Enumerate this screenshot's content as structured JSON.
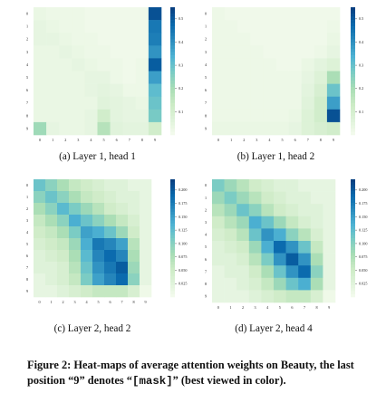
{
  "figure": {
    "caption": {
      "prefix": "Figure 2: Heat-maps of average attention weights on Beauty, the last position “9” denotes “",
      "code": "[mask]",
      "suffix": "” (best viewed in color)."
    },
    "colorscale": [
      "#f7fcf0",
      "#e0f3db",
      "#ccebc5",
      "#a8ddb5",
      "#7bccc4",
      "#4eb3d3",
      "#2b8cbe",
      "#0868ac",
      "#084081"
    ]
  },
  "chart_data": [
    {
      "type": "heatmap",
      "title": "(a) Layer 1, head 1",
      "x_categories": [
        "0",
        "1",
        "2",
        "3",
        "4",
        "5",
        "6",
        "7",
        "8",
        "9"
      ],
      "y_categories": [
        "0",
        "1",
        "2",
        "3",
        "4",
        "5",
        "6",
        "7",
        "8",
        "9"
      ],
      "zlim": [
        0,
        0.55
      ],
      "colorbar_ticks": [
        "0.5",
        "0.4",
        "0.3",
        "0.2",
        "0.1"
      ],
      "colorbar_values": [
        0.5,
        0.4,
        0.3,
        0.2,
        0.1
      ],
      "values": [
        [
          0.04,
          0.03,
          0.03,
          0.03,
          0.02,
          0.02,
          0.02,
          0.02,
          0.02,
          0.52
        ],
        [
          0.05,
          0.04,
          0.03,
          0.03,
          0.02,
          0.02,
          0.02,
          0.02,
          0.02,
          0.45
        ],
        [
          0.05,
          0.05,
          0.04,
          0.03,
          0.03,
          0.02,
          0.02,
          0.02,
          0.02,
          0.44
        ],
        [
          0.04,
          0.04,
          0.05,
          0.04,
          0.03,
          0.03,
          0.02,
          0.02,
          0.02,
          0.4
        ],
        [
          0.04,
          0.04,
          0.04,
          0.05,
          0.04,
          0.03,
          0.03,
          0.02,
          0.03,
          0.5
        ],
        [
          0.04,
          0.04,
          0.04,
          0.04,
          0.05,
          0.05,
          0.03,
          0.02,
          0.03,
          0.38
        ],
        [
          0.04,
          0.04,
          0.04,
          0.04,
          0.05,
          0.06,
          0.05,
          0.03,
          0.03,
          0.32
        ],
        [
          0.04,
          0.04,
          0.04,
          0.04,
          0.04,
          0.07,
          0.06,
          0.05,
          0.04,
          0.3
        ],
        [
          0.04,
          0.04,
          0.04,
          0.04,
          0.05,
          0.12,
          0.06,
          0.05,
          0.05,
          0.28
        ],
        [
          0.22,
          0.05,
          0.04,
          0.04,
          0.05,
          0.18,
          0.07,
          0.06,
          0.06,
          0.12
        ]
      ]
    },
    {
      "type": "heatmap",
      "title": "(b) Layer 1, head 2",
      "x_categories": [
        "0",
        "1",
        "2",
        "3",
        "4",
        "5",
        "6",
        "7",
        "8",
        "9"
      ],
      "y_categories": [
        "0",
        "1",
        "2",
        "3",
        "4",
        "5",
        "6",
        "7",
        "8",
        "9"
      ],
      "zlim": [
        0,
        0.55
      ],
      "colorbar_ticks": [
        "0.5",
        "0.4",
        "0.3",
        "0.2",
        "0.1"
      ],
      "colorbar_values": [
        0.5,
        0.4,
        0.3,
        0.2,
        0.1
      ],
      "values": [
        [
          0.03,
          0.02,
          0.02,
          0.02,
          0.02,
          0.02,
          0.02,
          0.02,
          0.02,
          0.02
        ],
        [
          0.03,
          0.03,
          0.02,
          0.02,
          0.02,
          0.02,
          0.02,
          0.02,
          0.02,
          0.03
        ],
        [
          0.03,
          0.03,
          0.03,
          0.02,
          0.02,
          0.02,
          0.02,
          0.02,
          0.02,
          0.04
        ],
        [
          0.03,
          0.03,
          0.03,
          0.03,
          0.02,
          0.02,
          0.02,
          0.02,
          0.03,
          0.05
        ],
        [
          0.03,
          0.03,
          0.03,
          0.03,
          0.03,
          0.02,
          0.02,
          0.04,
          0.06,
          0.08
        ],
        [
          0.03,
          0.03,
          0.03,
          0.03,
          0.03,
          0.03,
          0.03,
          0.05,
          0.08,
          0.2
        ],
        [
          0.03,
          0.03,
          0.03,
          0.03,
          0.03,
          0.03,
          0.03,
          0.06,
          0.1,
          0.3
        ],
        [
          0.03,
          0.03,
          0.03,
          0.03,
          0.03,
          0.03,
          0.03,
          0.07,
          0.12,
          0.38
        ],
        [
          0.03,
          0.03,
          0.03,
          0.03,
          0.03,
          0.03,
          0.04,
          0.08,
          0.12,
          0.52
        ],
        [
          0.04,
          0.04,
          0.04,
          0.04,
          0.04,
          0.04,
          0.05,
          0.08,
          0.1,
          0.12
        ]
      ]
    },
    {
      "type": "heatmap",
      "title": "(c) Layer 2, head 2",
      "x_categories": [
        "0",
        "1",
        "2",
        "3",
        "4",
        "5",
        "6",
        "7",
        "8",
        "9"
      ],
      "y_categories": [
        "0",
        "1",
        "2",
        "3",
        "4",
        "5",
        "6",
        "7",
        "8",
        "9"
      ],
      "zlim": [
        0,
        0.22
      ],
      "colorbar_ticks": [
        "0.200",
        "0.175",
        "0.150",
        "0.125",
        "0.100",
        "0.075",
        "0.050",
        "0.025"
      ],
      "colorbar_values": [
        0.2,
        0.175,
        0.15,
        0.125,
        0.1,
        0.075,
        0.05,
        0.025
      ],
      "values": [
        [
          0.12,
          0.1,
          0.08,
          0.06,
          0.05,
          0.04,
          0.03,
          0.03,
          0.02,
          0.02
        ],
        [
          0.1,
          0.12,
          0.1,
          0.08,
          0.06,
          0.05,
          0.04,
          0.03,
          0.03,
          0.02
        ],
        [
          0.08,
          0.1,
          0.13,
          0.11,
          0.09,
          0.07,
          0.05,
          0.04,
          0.03,
          0.02
        ],
        [
          0.06,
          0.08,
          0.1,
          0.14,
          0.12,
          0.1,
          0.08,
          0.06,
          0.04,
          0.02
        ],
        [
          0.05,
          0.06,
          0.08,
          0.11,
          0.15,
          0.14,
          0.12,
          0.09,
          0.05,
          0.02
        ],
        [
          0.04,
          0.05,
          0.06,
          0.09,
          0.14,
          0.18,
          0.17,
          0.15,
          0.07,
          0.02
        ],
        [
          0.03,
          0.04,
          0.05,
          0.08,
          0.13,
          0.17,
          0.19,
          0.17,
          0.08,
          0.02
        ],
        [
          0.03,
          0.03,
          0.04,
          0.07,
          0.12,
          0.16,
          0.18,
          0.2,
          0.09,
          0.02
        ],
        [
          0.02,
          0.03,
          0.04,
          0.06,
          0.11,
          0.15,
          0.17,
          0.19,
          0.1,
          0.02
        ],
        [
          0.02,
          0.02,
          0.03,
          0.04,
          0.05,
          0.06,
          0.06,
          0.06,
          0.04,
          0.01
        ]
      ]
    },
    {
      "type": "heatmap",
      "title": "(d) Layer 2, head 4",
      "x_categories": [
        "0",
        "1",
        "2",
        "3",
        "4",
        "5",
        "6",
        "7",
        "8",
        "9"
      ],
      "y_categories": [
        "0",
        "1",
        "2",
        "3",
        "4",
        "5",
        "6",
        "7",
        "8",
        "9"
      ],
      "zlim": [
        0,
        0.22
      ],
      "colorbar_ticks": [
        "0.200",
        "0.175",
        "0.150",
        "0.125",
        "0.100",
        "0.075",
        "0.050",
        "0.025"
      ],
      "colorbar_values": [
        0.2,
        0.175,
        0.15,
        0.125,
        0.1,
        0.075,
        0.05,
        0.025
      ],
      "values": [
        [
          0.11,
          0.09,
          0.07,
          0.05,
          0.04,
          0.03,
          0.03,
          0.02,
          0.02,
          0.02
        ],
        [
          0.09,
          0.11,
          0.09,
          0.07,
          0.05,
          0.04,
          0.03,
          0.03,
          0.02,
          0.02
        ],
        [
          0.07,
          0.09,
          0.12,
          0.1,
          0.07,
          0.05,
          0.04,
          0.03,
          0.03,
          0.02
        ],
        [
          0.05,
          0.07,
          0.09,
          0.14,
          0.12,
          0.09,
          0.06,
          0.04,
          0.03,
          0.02
        ],
        [
          0.04,
          0.05,
          0.07,
          0.12,
          0.16,
          0.14,
          0.1,
          0.07,
          0.04,
          0.02
        ],
        [
          0.03,
          0.04,
          0.05,
          0.09,
          0.14,
          0.19,
          0.16,
          0.12,
          0.06,
          0.02
        ],
        [
          0.03,
          0.03,
          0.04,
          0.07,
          0.11,
          0.16,
          0.2,
          0.16,
          0.08,
          0.02
        ],
        [
          0.02,
          0.03,
          0.03,
          0.05,
          0.08,
          0.12,
          0.16,
          0.19,
          0.1,
          0.02
        ],
        [
          0.02,
          0.02,
          0.03,
          0.04,
          0.06,
          0.09,
          0.12,
          0.14,
          0.08,
          0.02
        ],
        [
          0.02,
          0.02,
          0.02,
          0.03,
          0.04,
          0.05,
          0.06,
          0.06,
          0.04,
          0.01
        ]
      ]
    }
  ]
}
